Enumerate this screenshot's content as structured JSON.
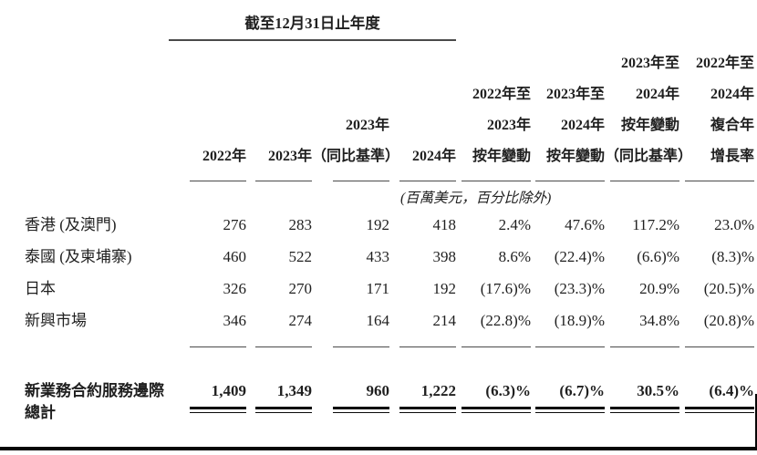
{
  "table": {
    "span_header": "截至12月31日止年度",
    "unit_note": "(百萬美元，百分比除外)",
    "columns": [
      {
        "lines": [
          "2022年"
        ]
      },
      {
        "lines": [
          "2023年"
        ]
      },
      {
        "lines": [
          "2023年",
          "（同比基準）"
        ]
      },
      {
        "lines": [
          "2024年"
        ]
      },
      {
        "lines": [
          "2022年至",
          "2023年",
          "按年變動"
        ]
      },
      {
        "lines": [
          "2023年至",
          "2024年",
          "按年變動"
        ]
      },
      {
        "lines": [
          "2023年至",
          "2024年",
          "按年變動",
          "（同比基準）"
        ]
      },
      {
        "lines": [
          "2022年至",
          "2024年",
          "複合年",
          "增長率"
        ]
      }
    ],
    "rows": [
      {
        "label": "香港 (及澳門)",
        "values": [
          "276",
          "283",
          "192",
          "418",
          "2.4%",
          "47.6%",
          "117.2%",
          "23.0%"
        ]
      },
      {
        "label": "泰國 (及柬埔寨)",
        "values": [
          "460",
          "522",
          "433",
          "398",
          "8.6%",
          "(22.4)%",
          "(6.6)%",
          "(8.3)%"
        ]
      },
      {
        "label": "日本",
        "values": [
          "326",
          "270",
          "171",
          "192",
          "(17.6)%",
          "(23.3)%",
          "20.9%",
          "(20.5)%"
        ]
      },
      {
        "label": "新興市場",
        "values": [
          "346",
          "274",
          "164",
          "214",
          "(22.8)%",
          "(18.9)%",
          "34.8%",
          "(20.8)%"
        ]
      }
    ],
    "total_row": {
      "label": "新業務合約服務邊際總計",
      "values": [
        "1,409",
        "1,349",
        "960",
        "1,222",
        "(6.3)%",
        "(6.7)%",
        "30.5%",
        "(6.4)%"
      ]
    },
    "colors": {
      "text": "#1f1f1f",
      "rule": "#4a4a4a",
      "strong_rule": "#060606",
      "background": "#ffffff"
    }
  }
}
